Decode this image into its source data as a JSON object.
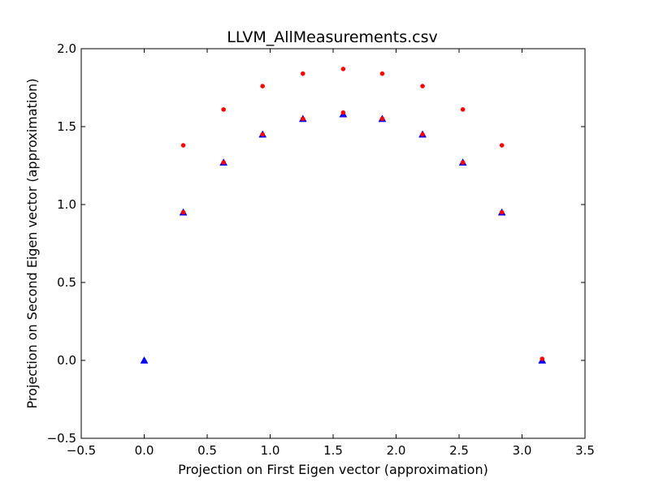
{
  "chart_data": {
    "type": "scatter",
    "title": "LLVM_AllMeasurements.csv",
    "xlabel": "Projection on First Eigen vector (approximation)",
    "ylabel": "Projection on Second Eigen vector (approximation)",
    "xlim": [
      -0.5,
      3.5
    ],
    "ylim": [
      -0.5,
      2.0
    ],
    "x_ticks": [
      "−0.5",
      "0.0",
      "0.5",
      "1.0",
      "1.5",
      "2.0",
      "2.5",
      "3.0",
      "3.5"
    ],
    "y_ticks": [
      "−0.5",
      "0.0",
      "0.5",
      "1.0",
      "1.5",
      "2.0"
    ],
    "grid": false,
    "legend": "none",
    "series": [
      {
        "marker": "triangle",
        "color": "#0000ff",
        "x": [
          0.0,
          0.31,
          0.63,
          0.94,
          1.26,
          1.58,
          1.89,
          2.21,
          2.53,
          2.84,
          3.16
        ],
        "y": [
          0.0,
          0.95,
          1.27,
          1.45,
          1.55,
          1.58,
          1.55,
          1.45,
          1.27,
          0.95,
          0.0
        ]
      },
      {
        "marker": "circle",
        "color": "#ff0000",
        "x": [
          0.31,
          0.63,
          0.94,
          1.26,
          1.58,
          1.89,
          2.21,
          2.53,
          2.84,
          0.31,
          0.63,
          0.94,
          1.26,
          1.58,
          1.89,
          2.21,
          2.53,
          2.84,
          3.16
        ],
        "y": [
          1.38,
          1.61,
          1.76,
          1.84,
          1.87,
          1.84,
          1.76,
          1.61,
          1.38,
          0.95,
          1.27,
          1.45,
          1.55,
          1.59,
          1.55,
          1.45,
          1.27,
          0.95,
          0.01
        ]
      }
    ]
  }
}
